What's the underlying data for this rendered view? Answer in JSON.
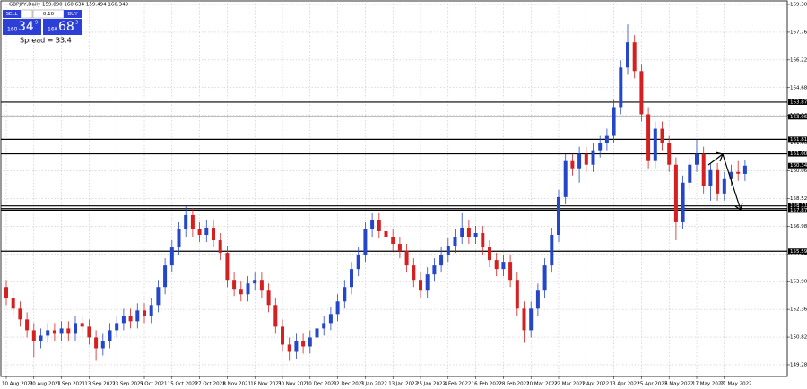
{
  "chart_data": {
    "type": "candlestick",
    "title": "GBPJPY,Daily  159.890 160.634 159.494 160.349",
    "categories": [
      "10 Aug 2021",
      null,
      null,
      null,
      "20 Aug 2021",
      null,
      null,
      null,
      "1 Sep 2021",
      null,
      null,
      null,
      "13 Sep 2021",
      null,
      null,
      null,
      "23 Sep 2021",
      null,
      null,
      null,
      "5 Oct 2021",
      null,
      null,
      null,
      "15 Oct 2021",
      null,
      null,
      null,
      "27 Oct 2021",
      null,
      null,
      null,
      "8 Nov 2021",
      null,
      null,
      null,
      "18 Nov 2021",
      null,
      null,
      null,
      "30 Nov 2021",
      null,
      null,
      null,
      "10 Dec 2021",
      null,
      null,
      null,
      "22 Dec 2021",
      null,
      null,
      null,
      "3 Jan 2022",
      null,
      null,
      null,
      "13 Jan 2022",
      null,
      null,
      null,
      "25 Jan 2022",
      null,
      null,
      null,
      "4 Feb 2022",
      null,
      null,
      null,
      "16 Feb 2022",
      null,
      null,
      null,
      "28 Feb 2022",
      null,
      null,
      null,
      "10 Mar 2022",
      null,
      null,
      null,
      "22 Mar 2022",
      null,
      null,
      null,
      "1 Apr 2022",
      null,
      null,
      null,
      "13 Apr 2022",
      null,
      null,
      null,
      "25 Apr 2022",
      null,
      null,
      null,
      "5 May 2022",
      null,
      null,
      null,
      "17 May 2022",
      null,
      null,
      null,
      "27 May 2022",
      null,
      null,
      null
    ],
    "open": [
      153.6,
      153.0,
      152.4,
      151.8,
      151.2,
      150.6,
      150.9,
      151.2,
      151.0,
      151.3,
      151.0,
      151.6,
      151.4,
      150.8,
      150.2,
      150.6,
      151.2,
      151.6,
      152.0,
      151.7,
      152.3,
      152.0,
      152.6,
      153.6,
      154.8,
      155.8,
      156.8,
      157.6,
      156.8,
      156.5,
      156.9,
      156.2,
      155.5,
      154.0,
      153.5,
      153.2,
      153.8,
      154.0,
      153.4,
      152.6,
      151.4,
      150.4,
      150.0,
      150.6,
      150.3,
      150.8,
      151.3,
      151.6,
      152.1,
      152.8,
      153.6,
      154.6,
      155.4,
      156.8,
      157.3,
      156.7,
      156.4,
      156.0,
      155.6,
      154.8,
      154.0,
      153.4,
      154.3,
      154.8,
      155.4,
      155.9,
      156.4,
      156.9,
      156.4,
      156.6,
      155.8,
      155.1,
      154.6,
      155.0,
      154.0,
      152.4,
      151.2,
      152.4,
      153.4,
      154.8,
      156.5,
      158.6,
      160.6,
      160.2,
      161.0,
      160.4,
      161.2,
      161.6,
      162.0,
      163.6,
      165.8,
      167.2,
      165.6,
      163.2,
      160.6,
      162.4,
      161.6,
      160.4,
      157.2,
      159.4,
      160.4,
      161.0,
      159.2,
      160.1,
      158.8,
      159.6,
      160.0,
      159.89
    ],
    "high": [
      154.0,
      153.4,
      152.8,
      152.2,
      151.6,
      151.3,
      151.6,
      151.6,
      151.7,
      151.7,
      152.0,
      152.0,
      151.8,
      151.2,
      151.0,
      151.6,
      152.0,
      152.4,
      152.4,
      152.7,
      152.7,
      153.0,
      154.0,
      155.2,
      156.2,
      157.2,
      158.1,
      158.0,
      157.2,
      157.3,
      157.3,
      156.6,
      155.9,
      154.4,
      153.9,
      154.2,
      154.4,
      154.4,
      153.8,
      153.0,
      151.8,
      150.8,
      151.0,
      151.0,
      151.2,
      151.7,
      152.0,
      152.5,
      153.2,
      154.0,
      155.0,
      155.8,
      157.2,
      157.7,
      157.7,
      157.1,
      156.8,
      156.4,
      156.0,
      155.2,
      154.4,
      154.7,
      155.2,
      155.8,
      156.3,
      156.8,
      157.7,
      157.3,
      157.0,
      157.0,
      156.2,
      155.5,
      155.4,
      155.4,
      154.4,
      152.8,
      152.8,
      153.8,
      155.2,
      156.9,
      159.0,
      161.0,
      161.0,
      161.4,
      161.4,
      161.6,
      162.0,
      162.4,
      164.0,
      166.2,
      168.2,
      167.6,
      166.0,
      163.6,
      162.8,
      162.8,
      162.0,
      160.8,
      159.8,
      160.8,
      161.8,
      161.4,
      160.5,
      160.5,
      160.0,
      160.4,
      160.6,
      160.634
    ],
    "low": [
      152.6,
      152.0,
      151.4,
      150.8,
      149.7,
      150.2,
      150.5,
      150.6,
      150.6,
      150.6,
      150.6,
      151.0,
      150.4,
      149.5,
      149.8,
      150.2,
      150.8,
      151.2,
      151.3,
      151.3,
      151.6,
      151.6,
      152.2,
      153.2,
      154.4,
      155.4,
      156.4,
      156.4,
      156.1,
      156.1,
      155.8,
      155.1,
      153.6,
      153.1,
      152.8,
      152.8,
      153.4,
      153.0,
      152.2,
      151.0,
      150.0,
      149.5,
      149.6,
      149.9,
      149.9,
      150.4,
      150.9,
      151.2,
      151.7,
      152.4,
      153.2,
      154.2,
      155.0,
      156.4,
      156.3,
      156.0,
      155.6,
      155.2,
      154.4,
      153.6,
      153.0,
      153.0,
      153.9,
      154.4,
      155.0,
      155.5,
      156.0,
      156.0,
      156.0,
      155.4,
      154.7,
      154.2,
      154.2,
      153.6,
      152.0,
      150.5,
      150.8,
      152.0,
      153.0,
      154.4,
      156.1,
      158.2,
      159.8,
      159.4,
      160.0,
      160.0,
      160.8,
      161.2,
      161.6,
      163.2,
      165.4,
      165.2,
      162.8,
      160.2,
      160.2,
      161.2,
      160.0,
      156.2,
      156.8,
      159.0,
      160.0,
      158.8,
      158.4,
      158.4,
      158.4,
      159.2,
      159.5,
      159.494
    ],
    "close": [
      153.0,
      152.4,
      151.8,
      151.2,
      150.6,
      150.9,
      151.2,
      151.0,
      151.3,
      151.0,
      151.6,
      151.4,
      150.8,
      150.2,
      150.6,
      151.2,
      151.6,
      152.0,
      151.7,
      152.3,
      152.0,
      152.6,
      153.6,
      154.8,
      155.8,
      156.8,
      157.6,
      156.8,
      156.5,
      156.9,
      156.2,
      155.5,
      154.0,
      153.5,
      153.2,
      153.8,
      154.0,
      153.4,
      152.6,
      151.4,
      150.4,
      150.0,
      150.6,
      150.3,
      150.8,
      151.3,
      151.6,
      152.1,
      152.8,
      153.6,
      154.6,
      155.4,
      156.8,
      157.3,
      156.7,
      156.4,
      156.0,
      155.6,
      154.8,
      154.0,
      153.4,
      154.3,
      154.8,
      155.4,
      155.9,
      156.4,
      156.9,
      156.4,
      156.6,
      155.8,
      155.1,
      154.6,
      155.0,
      154.0,
      152.4,
      151.2,
      152.4,
      153.4,
      154.8,
      156.5,
      158.6,
      160.6,
      160.2,
      161.0,
      160.4,
      161.2,
      161.6,
      162.0,
      163.6,
      165.8,
      167.2,
      165.6,
      163.2,
      160.6,
      162.4,
      161.6,
      160.4,
      157.2,
      159.4,
      160.4,
      161.0,
      159.2,
      160.1,
      158.8,
      159.6,
      160.0,
      159.9,
      160.349
    ],
    "up_color": "#2446c8",
    "down_color": "#d42020",
    "ylim": [
      148.73,
      169.55
    ],
    "yticks": [
      {
        "value": 169.3,
        "label": "169.300"
      },
      {
        "value": 167.76,
        "label": "167.760"
      },
      {
        "value": 166.22,
        "label": "166.220"
      },
      {
        "value": 164.68,
        "label": "164.680"
      },
      {
        "value": 163.14,
        "label": "163.140"
      },
      {
        "value": 161.6,
        "label": "161.600"
      },
      {
        "value": 160.06,
        "label": "160.060"
      },
      {
        "value": 158.52,
        "label": "158.520"
      },
      {
        "value": 156.98,
        "label": "156.980"
      },
      {
        "value": 155.44,
        "label": "155.440"
      },
      {
        "value": 153.9,
        "label": "153.900"
      },
      {
        "value": 152.36,
        "label": "152.360"
      },
      {
        "value": 150.82,
        "label": "150.820"
      },
      {
        "value": 149.28,
        "label": "149.280"
      }
    ],
    "levels": [
      {
        "value": 163.874,
        "label": "163.874"
      },
      {
        "value": 163.06,
        "label": "163.060"
      },
      {
        "value": 161.81,
        "label": "161.810"
      },
      {
        "value": 161.005,
        "label": "161.005"
      },
      {
        "value": 158.11,
        "label": "158.110"
      },
      {
        "value": 157.96,
        "label": "157.960"
      },
      {
        "value": 157.875,
        "label": "157.875"
      },
      {
        "value": 155.59,
        "label": "155.590"
      }
    ],
    "current": {
      "value": 160.349,
      "label": "160.349"
    },
    "grid": true
  },
  "trade_panel": {
    "sell": "SELL",
    "lot": "0.10",
    "buy": "BUY",
    "bid_big": "160",
    "bid_main": "34",
    "bid_sup": "9",
    "ask_big": "160",
    "ask_main": "68",
    "ask_sup": "3",
    "spread": "Spread = 33.4"
  }
}
